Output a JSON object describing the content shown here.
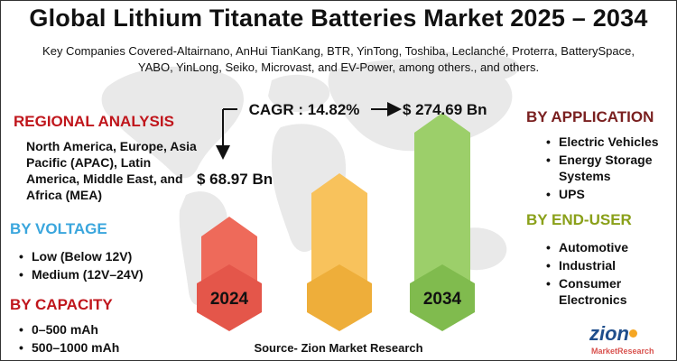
{
  "title": "Global Lithium Titanate Batteries Market 2025 – 2034",
  "subtitle": "Key Companies Covered-Altairnano, AnHui TianKang, BTR, YinTong, Toshiba, Leclanché, Proterra, BatterySpace, YABO, YinLong, Seiko, Microvast, and EV-Power, among others., and others.",
  "regional": {
    "heading": "REGIONAL ANALYSIS",
    "text": "North America, Europe, Asia Pacific (APAC), Latin America, Middle East, and Africa (MEA)",
    "color": "#c0161c"
  },
  "voltage": {
    "heading": "BY VOLTAGE",
    "items": [
      "Low (Below 12V)",
      "Medium (12V–24V)"
    ],
    "color": "#3aa6dd"
  },
  "capacity": {
    "heading": "BY CAPACITY",
    "items": [
      "0–500 mAh",
      "500–1000 mAh"
    ],
    "color": "#c0161c"
  },
  "application": {
    "heading": "BY APPLICATION",
    "items": [
      "Electric Vehicles",
      "Energy Storage Systems",
      "UPS"
    ],
    "color": "#7a2020"
  },
  "end_user": {
    "heading": "BY END-USER",
    "items": [
      "Automotive",
      "Industrial",
      "Consumer Electronics"
    ],
    "color": "#8aa019"
  },
  "source": "Source- Zion Market Research",
  "logo": {
    "main": "zion",
    "sub": "MarketResearch"
  },
  "chart_data": {
    "type": "bar",
    "categories": [
      "2024",
      "",
      "2034"
    ],
    "values": [
      68.97,
      null,
      274.69
    ],
    "value_labels": [
      "$ 68.97 Bn",
      "",
      "$ 274.69 Bn"
    ],
    "annotation": "CAGR : 14.82%",
    "colors": [
      "#ee6a5a",
      "#f8c25c",
      "#9ccf6a"
    ],
    "cap_colors": [
      "#e4564a",
      "#eeae3a",
      "#80bb4e"
    ]
  }
}
